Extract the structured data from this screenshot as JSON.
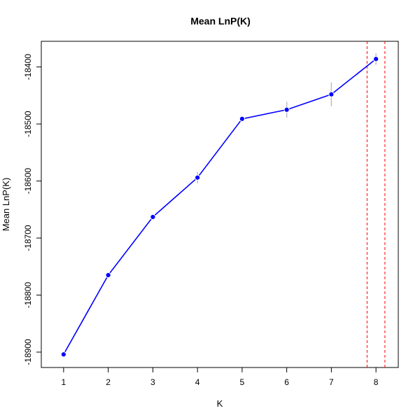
{
  "chart_data": {
    "type": "line",
    "title": "Mean LnP(K)",
    "xlabel": "K",
    "ylabel": "Mean LnP(K)",
    "x": [
      1,
      2,
      3,
      4,
      5,
      6,
      7,
      8
    ],
    "series": [
      {
        "values": [
          -18904,
          -18765,
          -18663,
          -18594,
          -18491,
          -18475,
          -18448,
          -18386
        ],
        "error": [
          1,
          3,
          3,
          10,
          3,
          14,
          21,
          10
        ]
      }
    ],
    "xlim": [
      0.5,
      8.5
    ],
    "ylim": [
      -18927,
      -18355
    ],
    "xticks": [
      "1",
      "2",
      "3",
      "4",
      "5",
      "6",
      "7",
      "8"
    ],
    "yticks": [
      "-18900",
      "-18800",
      "-18700",
      "-18600",
      "-18500",
      "-18400"
    ],
    "reference_lines_x": [
      7.8,
      8.2
    ],
    "grid": false,
    "colors": {
      "line": "#0000FF",
      "point": "#0000FF",
      "error_bar": "#BEBEBE",
      "reference_line": "#FF0000",
      "axis": "#000000"
    }
  }
}
